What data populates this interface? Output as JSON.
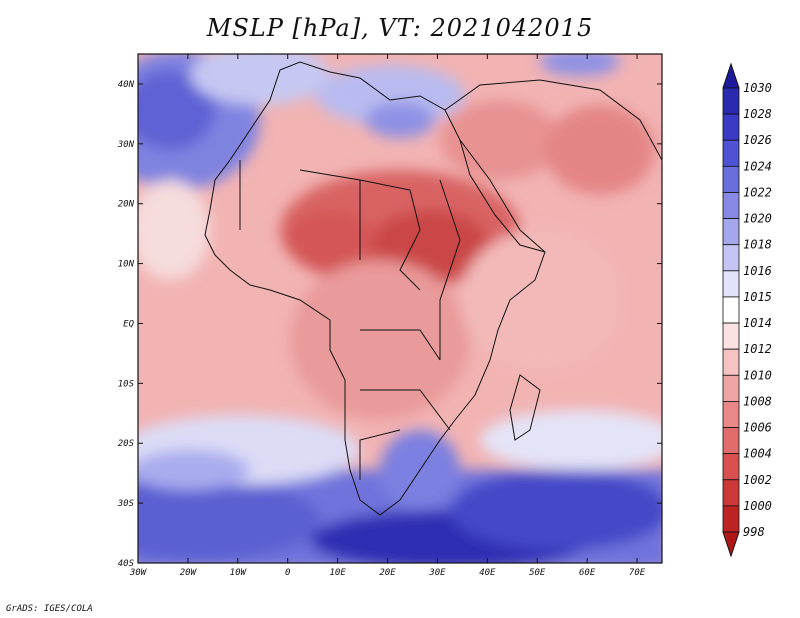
{
  "title": "MSLP [hPa], VT: 2021042015",
  "footer": "GrADS: IGES/COLA",
  "map": {
    "variable": "MSLP",
    "units": "hPa",
    "valid_time": "2021042015",
    "lon_range": [
      -30,
      75
    ],
    "lat_range": [
      -40,
      45
    ],
    "lon_ticks": [
      "30W",
      "20W",
      "10W",
      "0",
      "10E",
      "20E",
      "30E",
      "40E",
      "50E",
      "60E",
      "70E"
    ],
    "lat_ticks": [
      "40N",
      "30N",
      "20N",
      "10N",
      "EQ",
      "10S",
      "20S",
      "30S",
      "40S"
    ]
  },
  "colorbar": {
    "labels": [
      "1030",
      "1028",
      "1026",
      "1024",
      "1022",
      "1020",
      "1018",
      "1016",
      "1015",
      "1014",
      "1012",
      "1010",
      "1008",
      "1006",
      "1004",
      "1002",
      "1000",
      "998"
    ],
    "colors": [
      "#1e1a9c",
      "#2b29b0",
      "#3a3ac4",
      "#4f52d2",
      "#6a6ddc",
      "#8789e4",
      "#a5a7ec",
      "#c4c5f4",
      "#e2e3fa",
      "#ffffff",
      "#fbe1e1",
      "#f6c3c3",
      "#f0a5a5",
      "#e98888",
      "#e16c6c",
      "#d85050",
      "#cc3737",
      "#be2323",
      "#b01818"
    ]
  }
}
